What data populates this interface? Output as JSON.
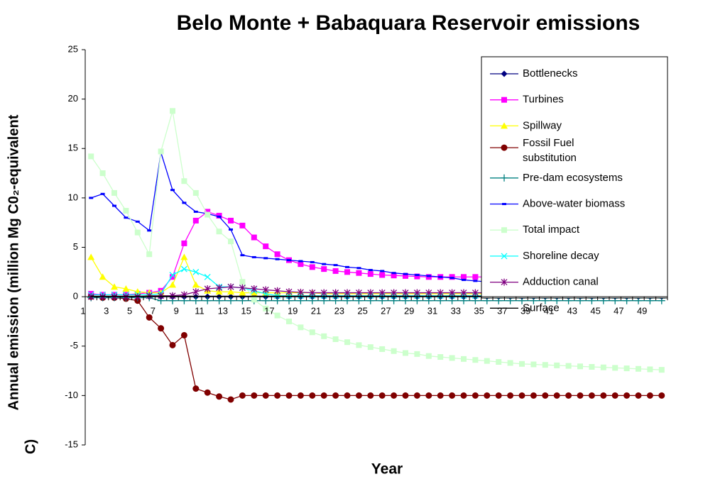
{
  "chart_data": {
    "type": "line",
    "title": "Belo Monte + Babaquara Reservoir emissions",
    "xlabel": "Year",
    "ylabel": [
      "Annual emission (million Mg C0₂-equivalent",
      "C)"
    ],
    "categories": [
      1,
      null,
      3,
      null,
      5,
      null,
      7,
      null,
      9,
      null,
      11,
      null,
      13,
      null,
      15,
      null,
      17,
      null,
      19,
      null,
      21,
      null,
      23,
      null,
      25,
      null,
      27,
      null,
      29,
      null,
      31,
      null,
      33,
      null,
      35,
      null,
      37,
      null,
      39,
      null,
      41,
      null,
      43,
      null,
      45,
      null,
      47,
      null,
      49,
      null
    ],
    "ylim": [
      -15,
      25
    ],
    "yticks": [
      -15,
      -10,
      -5,
      0,
      5,
      10,
      15,
      20,
      25
    ],
    "legend": "top-right",
    "series": [
      {
        "name": "Bottlenecks",
        "color": "#000080",
        "marker": "diamond",
        "values": [
          0,
          0,
          0,
          0,
          0,
          0,
          0,
          0,
          0,
          0,
          0,
          0,
          0,
          0,
          0,
          0,
          0,
          0,
          0,
          0,
          0,
          0,
          0,
          0,
          0,
          0,
          0,
          0,
          0,
          0,
          0,
          0,
          0,
          0,
          0,
          0,
          0,
          0,
          0,
          0,
          0,
          0,
          0,
          0,
          0,
          0,
          0,
          0,
          0,
          0
        ]
      },
      {
        "name": "Turbines",
        "color": "#ff00ff",
        "marker": "square",
        "values": [
          0.3,
          0.2,
          0.2,
          0.2,
          0.3,
          0.4,
          0.6,
          2.0,
          5.4,
          7.7,
          8.6,
          8.2,
          7.7,
          7.2,
          6.0,
          5.1,
          4.3,
          3.7,
          3.3,
          3.0,
          2.8,
          2.6,
          2.5,
          2.4,
          2.3,
          2.2,
          2.15,
          2.1,
          2.05,
          2.0,
          2.0,
          2.0,
          2.0,
          2.0,
          2.0,
          2.0,
          2.0,
          2.0,
          2.0,
          2.0,
          2.0,
          2.0,
          1.95,
          1.95,
          1.95,
          1.95,
          1.9,
          1.9,
          1.9,
          1.9
        ]
      },
      {
        "name": "Spillway",
        "color": "#ffff00",
        "marker": "triangle",
        "values": [
          4.0,
          2.0,
          1.0,
          0.8,
          0.5,
          0.4,
          0.4,
          1.2,
          4.0,
          1.2,
          0.6,
          0.5,
          0.5,
          0.4,
          0.4,
          0.4,
          0.4,
          0.4,
          0.4,
          0.4,
          0.3,
          0.3,
          0.3,
          0.3,
          0.3,
          0.3,
          0.3,
          0.3,
          0.3,
          0.3,
          0.3,
          0.3,
          0.3,
          0.3,
          0.3,
          0.3,
          0.3,
          0.3,
          0.3,
          0.3,
          0.3,
          0.3,
          0.3,
          0.3,
          0.3,
          0.3,
          0.3,
          0.3,
          0.3,
          0.3
        ]
      },
      {
        "name": "Fossil Fuel substitution",
        "color": "#800000",
        "marker": "circle",
        "values": [
          0,
          -0.1,
          -0.1,
          -0.2,
          -0.4,
          -2.1,
          -3.2,
          -4.9,
          -3.9,
          -9.3,
          -9.7,
          -10.1,
          -10.4,
          -10.0,
          -10,
          -10,
          -10,
          -10,
          -10,
          -10,
          -10,
          -10,
          -10,
          -10,
          -10,
          -10,
          -10,
          -10,
          -10,
          -10,
          -10,
          -10,
          -10,
          -10,
          -10,
          -10,
          -10,
          -10,
          -10,
          -10,
          -10,
          -10,
          -10,
          -10,
          -10,
          -10,
          -10,
          -10,
          -10,
          -10
        ]
      },
      {
        "name": "Pre-dam ecosystems",
        "color": "#008080",
        "marker": "plus",
        "values": [
          -0.1,
          -0.1,
          -0.1,
          -0.1,
          -0.1,
          -0.1,
          -0.4,
          -0.4,
          -0.4,
          -0.4,
          -0.4,
          -0.4,
          -0.4,
          -0.4,
          -0.4,
          -0.4,
          -0.4,
          -0.4,
          -0.4,
          -0.4,
          -0.4,
          -0.4,
          -0.4,
          -0.4,
          -0.4,
          -0.4,
          -0.4,
          -0.4,
          -0.4,
          -0.4,
          -0.4,
          -0.4,
          -0.4,
          -0.4,
          -0.4,
          -0.4,
          -0.4,
          -0.4,
          -0.4,
          -0.4,
          -0.4,
          -0.4,
          -0.4,
          -0.4,
          -0.4,
          -0.4,
          -0.4,
          -0.4,
          -0.4,
          -0.4
        ]
      },
      {
        "name": "Above-water biomass",
        "color": "#0000ff",
        "marker": "dash",
        "values": [
          10.0,
          10.4,
          9.2,
          8.0,
          7.6,
          6.7,
          14.6,
          10.8,
          9.5,
          8.6,
          8.4,
          8.1,
          6.8,
          4.2,
          4.0,
          3.9,
          3.8,
          3.7,
          3.6,
          3.5,
          3.3,
          3.2,
          3.0,
          2.9,
          2.7,
          2.6,
          2.4,
          2.3,
          2.2,
          2.1,
          2.0,
          1.9,
          1.7,
          1.6,
          1.5,
          1.4,
          1.3,
          1.2,
          1.1,
          1.05,
          1.0,
          0.95,
          0.9,
          0.85,
          0.8,
          0.75,
          0.7,
          0.65,
          0.6,
          0.55
        ]
      },
      {
        "name": "Total impact",
        "color": "#ccffcc",
        "marker": "square",
        "values": [
          14.2,
          12.5,
          10.5,
          8.7,
          6.5,
          4.3,
          14.7,
          18.8,
          11.7,
          10.5,
          8.3,
          6.6,
          5.6,
          1.5,
          -0.3,
          -1.2,
          -1.9,
          -2.5,
          -3.1,
          -3.6,
          -4.0,
          -4.3,
          -4.6,
          -4.9,
          -5.1,
          -5.3,
          -5.5,
          -5.7,
          -5.8,
          -6.0,
          -6.1,
          -6.2,
          -6.3,
          -6.4,
          -6.5,
          -6.6,
          -6.7,
          -6.8,
          -6.85,
          -6.9,
          -6.95,
          -7.0,
          -7.05,
          -7.1,
          -7.15,
          -7.2,
          -7.25,
          -7.3,
          -7.35,
          -7.4
        ]
      },
      {
        "name": "Shoreline decay",
        "color": "#00ffff",
        "marker": "x",
        "values": [
          0.2,
          0.2,
          0.2,
          0.2,
          0.2,
          0.2,
          0.3,
          2.2,
          2.8,
          2.5,
          2.0,
          1.0,
          1.0,
          0.9,
          0.6,
          0.3,
          0.1,
          0.1,
          0.1,
          0.1,
          0.1,
          0.1,
          0.1,
          0.1,
          0.1,
          0.1,
          0.1,
          0.1,
          0.1,
          0.1,
          0.1,
          0.1,
          0.1,
          0.1,
          0.1,
          0.1,
          0.1,
          0.1,
          0.1,
          0.1,
          0.1,
          0.1,
          0.1,
          0.1,
          0.1,
          0.1,
          0.1,
          0.1,
          0.1,
          0.1
        ]
      },
      {
        "name": "Adduction canal",
        "color": "#800080",
        "marker": "asterisk",
        "values": [
          0,
          0,
          0,
          0,
          0,
          0.1,
          0.1,
          0.1,
          0.2,
          0.5,
          0.8,
          0.9,
          1.0,
          0.9,
          0.8,
          0.7,
          0.6,
          0.5,
          0.45,
          0.4,
          0.4,
          0.4,
          0.4,
          0.4,
          0.4,
          0.4,
          0.4,
          0.4,
          0.4,
          0.4,
          0.4,
          0.4,
          0.4,
          0.4,
          0.4,
          0.4,
          0.4,
          0.4,
          0.4,
          0.4,
          0.4,
          0.4,
          0.4,
          0.4,
          0.4,
          0.4,
          0.4,
          0.4,
          0.4,
          0.4
        ]
      },
      {
        "name": "Surface",
        "color": "#000000",
        "marker": "none",
        "values": [
          0.05,
          0.05,
          0.05,
          0.05,
          0.05,
          0.05,
          0.05,
          0.05,
          0.05,
          0.05,
          0.05,
          0.05,
          0.05,
          0.05,
          0.05,
          0.05,
          0.05,
          0.05,
          0.05,
          0.05,
          0.05,
          0.05,
          0.05,
          0.05,
          0.05,
          0.05,
          0.05,
          0.05,
          0.05,
          0.05,
          0.05,
          0.05,
          0.05,
          0.05,
          0.05,
          0.05,
          0.05,
          0.05,
          0.05,
          0.05,
          0.05,
          0.05,
          0.05,
          0.05,
          0.05,
          0.05,
          0.05,
          0.05,
          0.05,
          0.05
        ]
      }
    ]
  }
}
